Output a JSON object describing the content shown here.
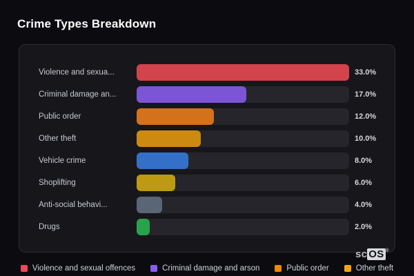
{
  "chart_data": {
    "type": "bar",
    "orientation": "horizontal",
    "title": "Crime Types Breakdown",
    "xlabel": "",
    "ylabel": "",
    "unit": "%",
    "xlim": [
      0,
      33
    ],
    "grid": false,
    "legend_position": "bottom",
    "rows": [
      {
        "label": "Violence and sexua...",
        "value": 33.0,
        "value_label": "33.0%",
        "color": "#d2434c"
      },
      {
        "label": "Criminal damage an...",
        "value": 17.0,
        "value_label": "17.0%",
        "color": "#7b55d6"
      },
      {
        "label": "Public order",
        "value": 12.0,
        "value_label": "12.0%",
        "color": "#d4711b"
      },
      {
        "label": "Other theft",
        "value": 10.0,
        "value_label": "10.0%",
        "color": "#cd8a10"
      },
      {
        "label": "Vehicle crime",
        "value": 8.0,
        "value_label": "8.0%",
        "color": "#3470c8"
      },
      {
        "label": "Shoplifting",
        "value": 6.0,
        "value_label": "6.0%",
        "color": "#bd9a12"
      },
      {
        "label": "Anti-social behavi...",
        "value": 4.0,
        "value_label": "4.0%",
        "color": "#5a6576"
      },
      {
        "label": "Drugs",
        "value": 2.0,
        "value_label": "2.0%",
        "color": "#28a34c"
      }
    ],
    "legend": [
      {
        "label": "Violence and sexual offences",
        "color": "#ee4958"
      },
      {
        "label": "Criminal damage and arson",
        "color": "#8a5cf6"
      },
      {
        "label": "Public order",
        "color": "#f28705"
      },
      {
        "label": "Other theft",
        "color": "#f0a613"
      }
    ]
  },
  "watermark": {
    "prefix": "sc",
    "suffix": "OS",
    "registered": "®"
  },
  "colors": {
    "page_bg": "#0c0c10",
    "panel_bg": "#17171b",
    "panel_border": "#2b2b33",
    "track_bg": "#25252b",
    "title_color": "#ffffff",
    "label_color": "#c6c9cf",
    "value_color": "#d5d7db",
    "legend_color": "#ced1d6",
    "watermark_sc": "#b9bcc1",
    "watermark_os_bg": "#d9dadd",
    "watermark_os_fg": "#131316"
  }
}
